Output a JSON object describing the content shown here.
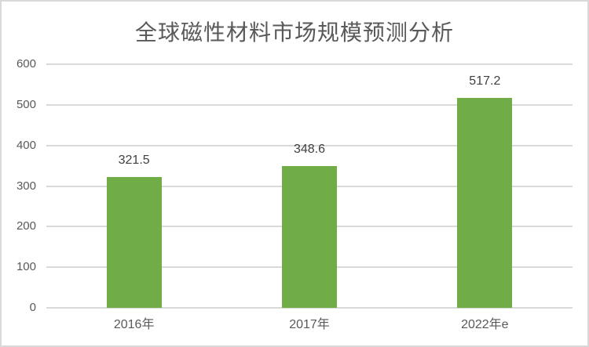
{
  "chart_data": {
    "type": "bar",
    "title": "全球磁性材料市场规模预测分析",
    "categories": [
      "2016年",
      "2017年",
      "2022年e"
    ],
    "values": [
      321.5,
      348.6,
      517.2
    ],
    "data_labels": [
      "321.5",
      "348.6",
      "517.2"
    ],
    "xlabel": "",
    "ylabel": "",
    "ylim": [
      0,
      600
    ],
    "yticks": [
      0,
      100,
      200,
      300,
      400,
      500,
      600
    ],
    "grid": true,
    "legend": "none",
    "colors": {
      "bar": "#70AD47",
      "gridline": "#D9D9D9",
      "axis_text": "#595959",
      "title_text": "#595959",
      "data_label_text": "#404040",
      "border": "#D9D9D9",
      "background": "#FFFFFF"
    }
  }
}
